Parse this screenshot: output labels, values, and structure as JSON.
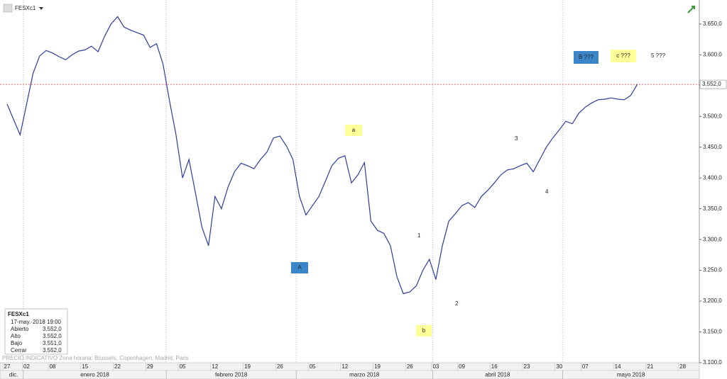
{
  "chart_data": {
    "type": "line",
    "title": "FESXc1",
    "color": "#2b3c9e",
    "x": [
      "2017-12-27",
      "2017-12-28",
      "2017-12-29",
      "2018-01-02",
      "2018-01-03",
      "2018-01-04",
      "2018-01-05",
      "2018-01-08",
      "2018-01-09",
      "2018-01-10",
      "2018-01-11",
      "2018-01-12",
      "2018-01-15",
      "2018-01-16",
      "2018-01-17",
      "2018-01-18",
      "2018-01-19",
      "2018-01-22",
      "2018-01-23",
      "2018-01-24",
      "2018-01-25",
      "2018-01-26",
      "2018-01-29",
      "2018-01-30",
      "2018-01-31",
      "2018-02-01",
      "2018-02-02",
      "2018-02-05",
      "2018-02-06",
      "2018-02-07",
      "2018-02-08",
      "2018-02-09",
      "2018-02-12",
      "2018-02-13",
      "2018-02-14",
      "2018-02-15",
      "2018-02-16",
      "2018-02-19",
      "2018-02-20",
      "2018-02-21",
      "2018-02-22",
      "2018-02-23",
      "2018-02-26",
      "2018-02-27",
      "2018-02-28",
      "2018-03-01",
      "2018-03-02",
      "2018-03-05",
      "2018-03-06",
      "2018-03-07",
      "2018-03-08",
      "2018-03-09",
      "2018-03-12",
      "2018-03-13",
      "2018-03-14",
      "2018-03-15",
      "2018-03-16",
      "2018-03-19",
      "2018-03-20",
      "2018-03-21",
      "2018-03-22",
      "2018-03-23",
      "2018-03-26",
      "2018-03-27",
      "2018-03-28",
      "2018-03-29",
      "2018-04-03",
      "2018-04-04",
      "2018-04-05",
      "2018-04-06",
      "2018-04-09",
      "2018-04-10",
      "2018-04-11",
      "2018-04-12",
      "2018-04-13",
      "2018-04-16",
      "2018-04-17",
      "2018-04-18",
      "2018-04-19",
      "2018-04-20",
      "2018-04-23",
      "2018-04-24",
      "2018-04-25",
      "2018-04-26",
      "2018-04-27",
      "2018-04-30",
      "2018-05-02",
      "2018-05-03",
      "2018-05-04",
      "2018-05-07",
      "2018-05-08",
      "2018-05-09",
      "2018-05-10",
      "2018-05-11",
      "2018-05-14",
      "2018-05-15",
      "2018-05-16",
      "2018-05-17"
    ],
    "values": [
      3520,
      3495,
      3470,
      3520,
      3570,
      3598,
      3607,
      3603,
      3597,
      3592,
      3600,
      3606,
      3608,
      3614,
      3605,
      3630,
      3650,
      3662,
      3645,
      3640,
      3636,
      3632,
      3612,
      3618,
      3585,
      3525,
      3470,
      3400,
      3430,
      3375,
      3320,
      3290,
      3370,
      3350,
      3385,
      3410,
      3424,
      3420,
      3415,
      3430,
      3442,
      3465,
      3468,
      3452,
      3430,
      3370,
      3340,
      3355,
      3370,
      3395,
      3420,
      3432,
      3436,
      3392,
      3405,
      3425,
      3330,
      3315,
      3310,
      3290,
      3240,
      3212,
      3215,
      3225,
      3250,
      3268,
      3235,
      3290,
      3330,
      3342,
      3355,
      3360,
      3352,
      3370,
      3380,
      3392,
      3405,
      3413,
      3415,
      3420,
      3424,
      3410,
      3430,
      3450,
      3465,
      3478,
      3492,
      3488,
      3505,
      3515,
      3522,
      3527,
      3528,
      3530,
      3528,
      3527,
      3534,
      3552
    ],
    "ylim": [
      3100,
      3689
    ],
    "yticks": [
      {
        "value": 3100,
        "label": "3.100,0"
      },
      {
        "value": 3150,
        "label": "3.150,0"
      },
      {
        "value": 3200,
        "label": "3.200,0"
      },
      {
        "value": 3250,
        "label": "3.250,0"
      },
      {
        "value": 3300,
        "label": "3.300,0"
      },
      {
        "value": 3350,
        "label": "3.350,0"
      },
      {
        "value": 3400,
        "label": "3.400,0"
      },
      {
        "value": 3450,
        "label": "3.450,0"
      },
      {
        "value": 3500,
        "label": "3.500,0"
      },
      {
        "value": 3550,
        "label": "3.550,0"
      },
      {
        "value": 3600,
        "label": "3.600,0"
      },
      {
        "value": 3650,
        "label": "3.650,0"
      }
    ],
    "xticks": [
      {
        "value": "2017-12-27",
        "label": "27"
      },
      {
        "value": "2018-01-02",
        "label": "02"
      },
      {
        "value": "2018-01-08",
        "label": "08"
      },
      {
        "value": "2018-01-15",
        "label": "15"
      },
      {
        "value": "2018-01-22",
        "label": "22"
      },
      {
        "value": "2018-01-29",
        "label": "29"
      },
      {
        "value": "2018-02-05",
        "label": "05"
      },
      {
        "value": "2018-02-12",
        "label": "12"
      },
      {
        "value": "2018-02-19",
        "label": "19"
      },
      {
        "value": "2018-02-26",
        "label": "26"
      },
      {
        "value": "2018-03-05",
        "label": "05"
      },
      {
        "value": "2018-03-12",
        "label": "12"
      },
      {
        "value": "2018-03-19",
        "label": "19"
      },
      {
        "value": "2018-03-26",
        "label": "26"
      },
      {
        "value": "2018-04-03",
        "label": "03"
      },
      {
        "value": "2018-04-09",
        "label": "09"
      },
      {
        "value": "2018-04-16",
        "label": "16"
      },
      {
        "value": "2018-04-23",
        "label": "23"
      },
      {
        "value": "2018-04-30",
        "label": "30"
      },
      {
        "value": "2018-05-07",
        "label": "07"
      },
      {
        "value": "2018-05-14",
        "label": "14"
      },
      {
        "value": "2018-05-21",
        "label": "21"
      },
      {
        "value": "2018-05-28",
        "label": "28"
      }
    ],
    "x_months": [
      {
        "value": "2017-12",
        "label": "dic."
      },
      {
        "value": "2018-01",
        "label": "enero 2018"
      },
      {
        "value": "2018-02",
        "label": "febrero 2018"
      },
      {
        "value": "2018-03",
        "label": "marzo 2018"
      },
      {
        "value": "2018-04",
        "label": "abril 2018"
      },
      {
        "value": "2018-05",
        "label": "mayo 2018"
      }
    ],
    "last_value": {
      "value": 3552,
      "label": "3.552,0"
    },
    "annotations": [
      "B ???",
      "c ???",
      "5 ???",
      "a",
      "A",
      "b",
      "1",
      "2",
      "3",
      "4"
    ],
    "watermark": "PRECIO INDICATIVO   Zona horaria: Brussels, Copenhagen, Madrid, Paris",
    "info_box": {
      "title": "FESXc1",
      "datetime": "17-may.-2018 19:00",
      "rows": [
        [
          "Abierto",
          "3.552,0"
        ],
        [
          "Alto",
          "3.552,0"
        ],
        [
          "Bajo",
          "3.551,0"
        ],
        [
          "Cerrar",
          "3.552,0"
        ]
      ]
    }
  }
}
